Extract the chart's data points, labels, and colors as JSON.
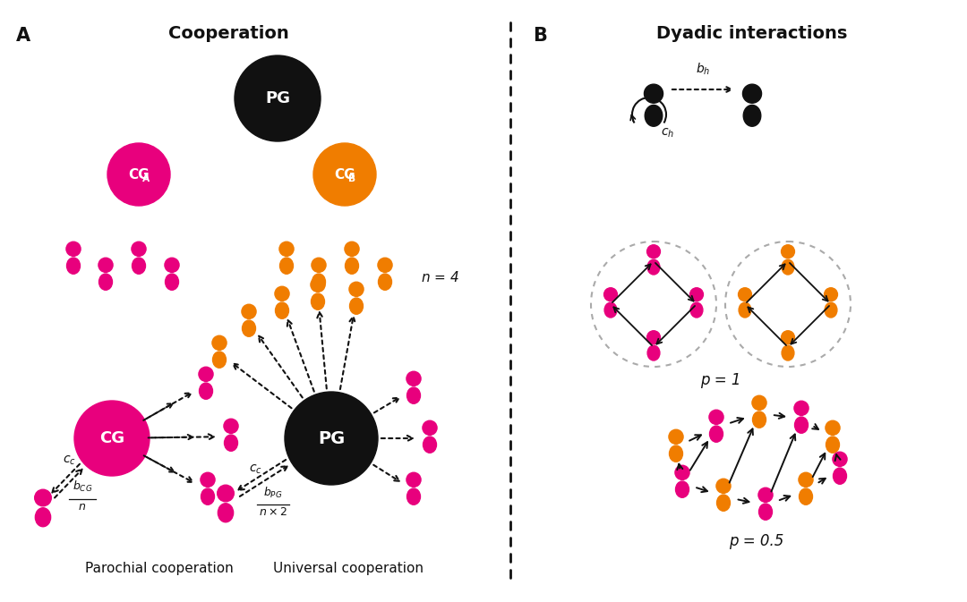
{
  "magenta": "#E8007D",
  "orange": "#F07D00",
  "black": "#111111",
  "white": "#FFFFFF",
  "bg": "#FFFFFF",
  "label_A": "A",
  "label_B": "B",
  "title_left": "Cooperation",
  "title_right": "Dyadic interactions",
  "label_parochial": "Parochial cooperation",
  "label_universal": "Universal cooperation",
  "label_p1": "p = 1",
  "label_p05": "p = 0.5",
  "label_n4": "n = 4"
}
